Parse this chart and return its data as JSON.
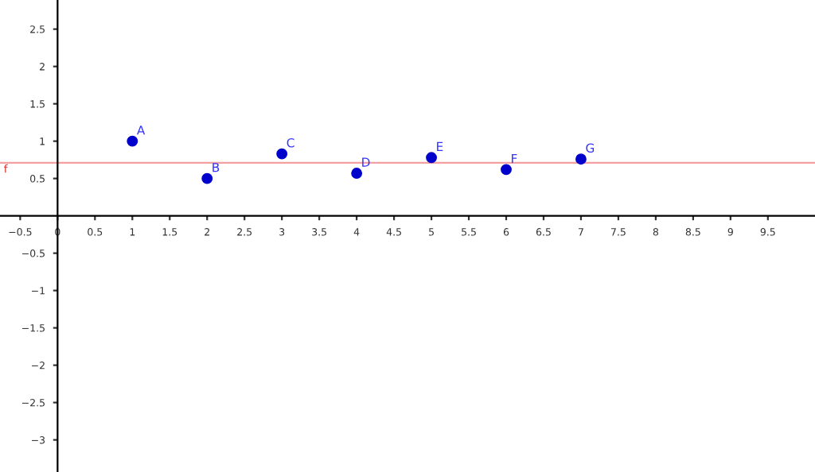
{
  "chart_data": {
    "type": "scatter",
    "x": [
      1,
      2,
      3,
      4,
      5,
      6,
      7
    ],
    "series": [
      {
        "color": "#0000cc",
        "values": [
          1.0,
          0.5,
          0.83,
          0.57,
          0.78,
          0.62,
          0.76
        ]
      }
    ],
    "marker": "circle",
    "grid": false,
    "legend": false,
    "xlim": [
      -0.77,
      10.13
    ],
    "ylim": [
      -3.43,
      2.89
    ],
    "xticks": [
      -0.5,
      0,
      0.5,
      1,
      1.5,
      2,
      2.5,
      3,
      3.5,
      4,
      4.5,
      5,
      5.5,
      6,
      6.5,
      7,
      7.5,
      8,
      8.5,
      9,
      9.5
    ],
    "yticks": [
      -3,
      -2.5,
      -2,
      -1.5,
      -1,
      -0.5,
      0.5,
      1,
      1.5,
      2,
      2.5
    ],
    "ref_lines": [
      {
        "axis": "y",
        "value": 0.71,
        "label": "f",
        "color": "#f4a0a0"
      }
    ],
    "annotations": [
      {
        "text": "A",
        "x": 1,
        "y": 1.0
      },
      {
        "text": "B",
        "x": 2,
        "y": 0.5
      },
      {
        "text": "C",
        "x": 3,
        "y": 0.83
      },
      {
        "text": "D",
        "x": 4,
        "y": 0.57
      },
      {
        "text": "E",
        "x": 5,
        "y": 0.78
      },
      {
        "text": "F",
        "x": 6,
        "y": 0.62
      },
      {
        "text": "G",
        "x": 7,
        "y": 0.76
      }
    ]
  }
}
